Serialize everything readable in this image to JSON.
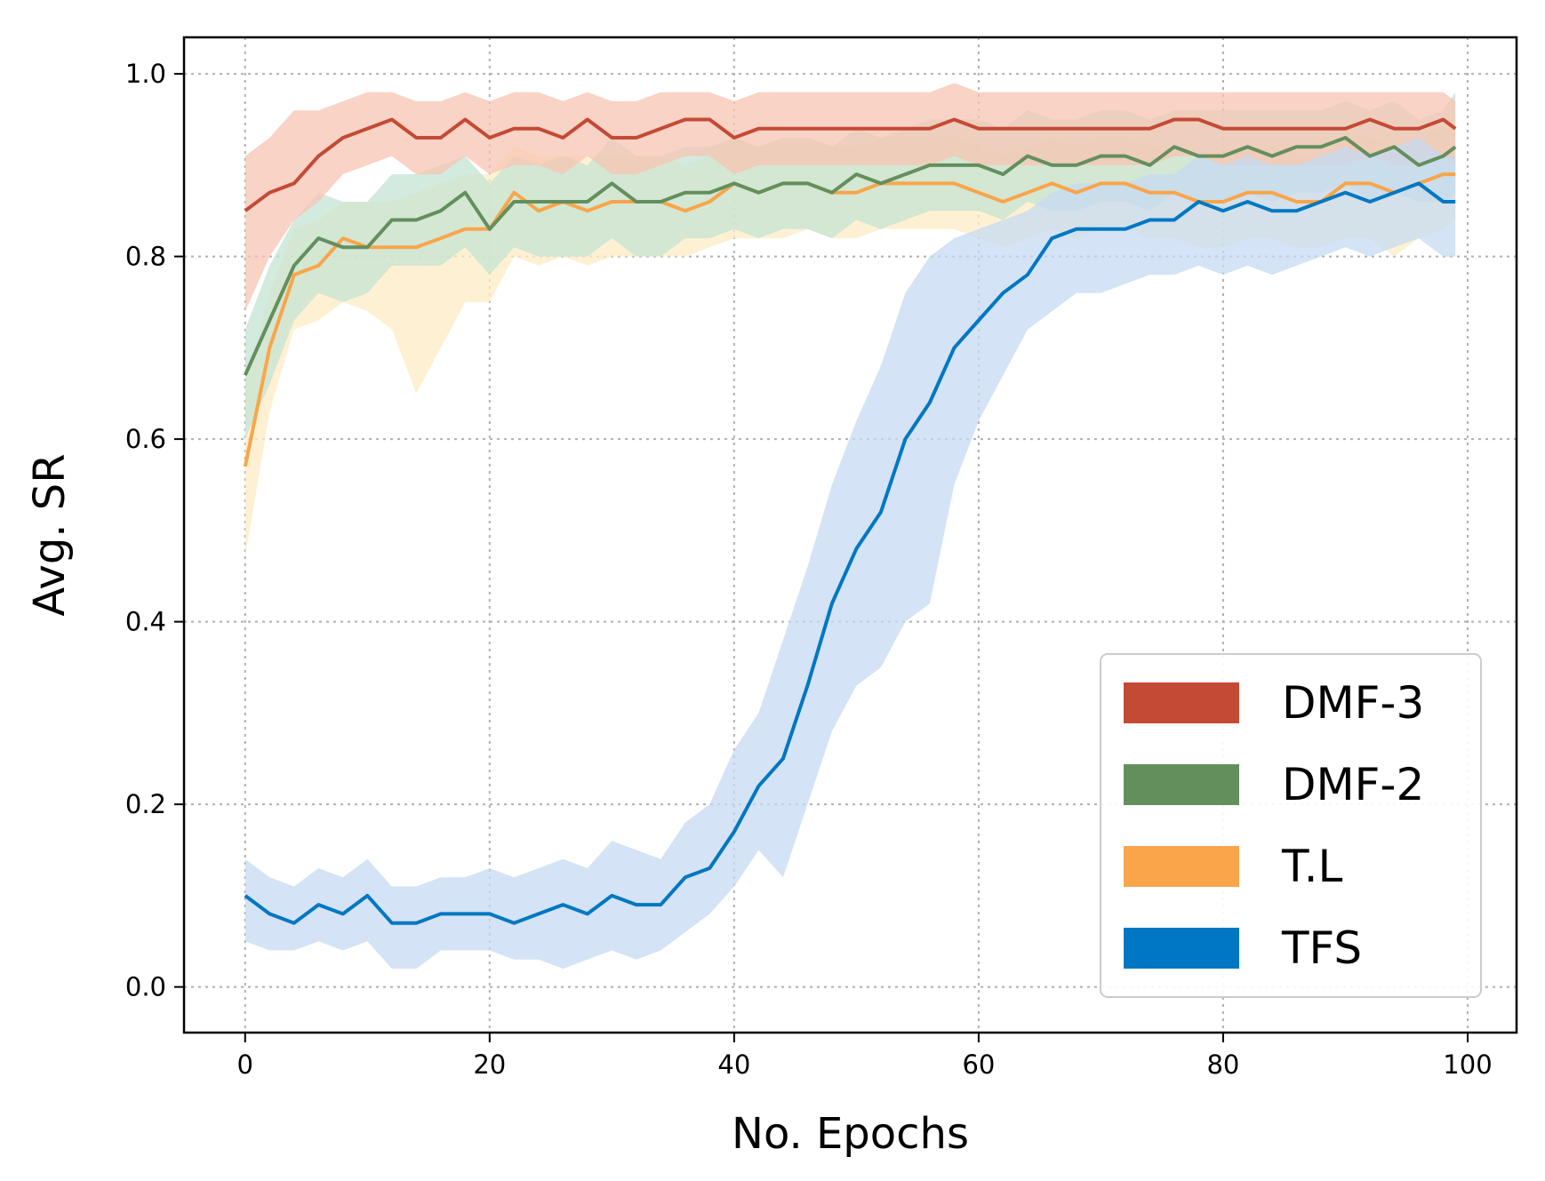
{
  "chart_data": {
    "type": "line",
    "title": "",
    "xlabel": "No. Epochs",
    "ylabel": "Avg. SR",
    "xlim": [
      -5,
      104
    ],
    "ylim": [
      -0.05,
      1.04
    ],
    "xticks": [
      0,
      20,
      40,
      60,
      80,
      100
    ],
    "yticks": [
      0.0,
      0.2,
      0.4,
      0.6,
      0.8,
      1.0
    ],
    "xtick_labels": [
      "0",
      "20",
      "40",
      "60",
      "80",
      "100"
    ],
    "ytick_labels": [
      "0.0",
      "0.2",
      "0.4",
      "0.6",
      "0.8",
      "1.0"
    ],
    "grid": true,
    "legend_position": "lower-right",
    "x": [
      0,
      2,
      4,
      6,
      8,
      10,
      12,
      14,
      16,
      18,
      20,
      22,
      24,
      26,
      28,
      30,
      32,
      34,
      36,
      38,
      40,
      42,
      44,
      46,
      48,
      50,
      52,
      54,
      56,
      58,
      60,
      62,
      64,
      66,
      68,
      70,
      72,
      74,
      76,
      78,
      80,
      82,
      84,
      86,
      88,
      90,
      92,
      94,
      96,
      98,
      99
    ],
    "series": [
      {
        "name": "DMF-3",
        "color": "#c44a36",
        "band_color": "#f7c4b2",
        "values": [
          0.85,
          0.87,
          0.88,
          0.91,
          0.93,
          0.94,
          0.95,
          0.93,
          0.93,
          0.95,
          0.93,
          0.94,
          0.94,
          0.93,
          0.95,
          0.93,
          0.93,
          0.94,
          0.95,
          0.95,
          0.93,
          0.94,
          0.94,
          0.94,
          0.94,
          0.94,
          0.94,
          0.94,
          0.94,
          0.95,
          0.94,
          0.94,
          0.94,
          0.94,
          0.94,
          0.94,
          0.94,
          0.94,
          0.95,
          0.95,
          0.94,
          0.94,
          0.94,
          0.94,
          0.94,
          0.94,
          0.95,
          0.94,
          0.94,
          0.95,
          0.94
        ],
        "lower": [
          0.74,
          0.8,
          0.84,
          0.86,
          0.89,
          0.9,
          0.91,
          0.89,
          0.89,
          0.91,
          0.89,
          0.9,
          0.9,
          0.89,
          0.91,
          0.89,
          0.89,
          0.9,
          0.91,
          0.91,
          0.89,
          0.9,
          0.9,
          0.9,
          0.9,
          0.9,
          0.9,
          0.9,
          0.9,
          0.91,
          0.9,
          0.9,
          0.9,
          0.9,
          0.9,
          0.9,
          0.9,
          0.9,
          0.91,
          0.91,
          0.9,
          0.9,
          0.9,
          0.9,
          0.9,
          0.9,
          0.91,
          0.9,
          0.9,
          0.91,
          0.9
        ],
        "upper": [
          0.91,
          0.93,
          0.96,
          0.96,
          0.97,
          0.98,
          0.98,
          0.97,
          0.97,
          0.98,
          0.97,
          0.98,
          0.98,
          0.97,
          0.98,
          0.97,
          0.97,
          0.98,
          0.98,
          0.98,
          0.97,
          0.98,
          0.98,
          0.98,
          0.98,
          0.98,
          0.98,
          0.98,
          0.98,
          0.99,
          0.98,
          0.98,
          0.98,
          0.98,
          0.98,
          0.98,
          0.98,
          0.98,
          0.98,
          0.98,
          0.98,
          0.98,
          0.98,
          0.98,
          0.98,
          0.98,
          0.98,
          0.98,
          0.98,
          0.98,
          0.97
        ]
      },
      {
        "name": "DMF-2",
        "color": "#638f5d",
        "band_color": "#c4e3d3",
        "values": [
          0.67,
          0.73,
          0.79,
          0.82,
          0.81,
          0.81,
          0.84,
          0.84,
          0.85,
          0.87,
          0.83,
          0.86,
          0.86,
          0.86,
          0.86,
          0.88,
          0.86,
          0.86,
          0.87,
          0.87,
          0.88,
          0.87,
          0.88,
          0.88,
          0.87,
          0.89,
          0.88,
          0.89,
          0.9,
          0.9,
          0.9,
          0.89,
          0.91,
          0.9,
          0.9,
          0.91,
          0.91,
          0.9,
          0.92,
          0.91,
          0.91,
          0.92,
          0.91,
          0.92,
          0.92,
          0.93,
          0.91,
          0.92,
          0.9,
          0.91,
          0.92
        ],
        "lower": [
          0.6,
          0.66,
          0.73,
          0.76,
          0.75,
          0.76,
          0.79,
          0.79,
          0.79,
          0.81,
          0.78,
          0.81,
          0.8,
          0.8,
          0.8,
          0.82,
          0.8,
          0.8,
          0.82,
          0.82,
          0.83,
          0.82,
          0.83,
          0.83,
          0.82,
          0.84,
          0.83,
          0.84,
          0.85,
          0.85,
          0.85,
          0.84,
          0.86,
          0.85,
          0.85,
          0.86,
          0.86,
          0.85,
          0.87,
          0.86,
          0.86,
          0.87,
          0.86,
          0.87,
          0.87,
          0.88,
          0.86,
          0.87,
          0.86,
          0.86,
          0.87
        ],
        "upper": [
          0.72,
          0.79,
          0.84,
          0.87,
          0.86,
          0.86,
          0.89,
          0.89,
          0.9,
          0.91,
          0.88,
          0.91,
          0.9,
          0.91,
          0.9,
          0.93,
          0.91,
          0.91,
          0.92,
          0.92,
          0.93,
          0.92,
          0.93,
          0.93,
          0.92,
          0.94,
          0.93,
          0.94,
          0.95,
          0.95,
          0.95,
          0.94,
          0.96,
          0.95,
          0.95,
          0.96,
          0.96,
          0.95,
          0.96,
          0.96,
          0.96,
          0.96,
          0.96,
          0.96,
          0.96,
          0.97,
          0.96,
          0.97,
          0.95,
          0.96,
          0.98
        ]
      },
      {
        "name": "T.L",
        "color": "#f9a54a",
        "band_color": "#fdecc4",
        "values": [
          0.57,
          0.7,
          0.78,
          0.79,
          0.82,
          0.81,
          0.81,
          0.81,
          0.82,
          0.83,
          0.83,
          0.87,
          0.85,
          0.86,
          0.85,
          0.86,
          0.86,
          0.86,
          0.85,
          0.86,
          0.88,
          0.87,
          0.88,
          0.88,
          0.87,
          0.87,
          0.88,
          0.88,
          0.88,
          0.88,
          0.87,
          0.86,
          0.87,
          0.88,
          0.87,
          0.88,
          0.88,
          0.87,
          0.87,
          0.86,
          0.86,
          0.87,
          0.87,
          0.86,
          0.86,
          0.88,
          0.88,
          0.87,
          0.88,
          0.89,
          0.89
        ],
        "lower": [
          0.47,
          0.63,
          0.72,
          0.73,
          0.75,
          0.74,
          0.72,
          0.65,
          0.7,
          0.75,
          0.75,
          0.8,
          0.79,
          0.8,
          0.79,
          0.8,
          0.8,
          0.8,
          0.8,
          0.81,
          0.82,
          0.82,
          0.82,
          0.83,
          0.82,
          0.82,
          0.83,
          0.83,
          0.83,
          0.83,
          0.82,
          0.81,
          0.82,
          0.83,
          0.82,
          0.83,
          0.83,
          0.82,
          0.82,
          0.81,
          0.81,
          0.82,
          0.82,
          0.81,
          0.81,
          0.82,
          0.82,
          0.8,
          0.82,
          0.83,
          0.84
        ],
        "upper": [
          0.66,
          0.76,
          0.83,
          0.84,
          0.86,
          0.86,
          0.86,
          0.87,
          0.88,
          0.89,
          0.89,
          0.92,
          0.91,
          0.91,
          0.91,
          0.91,
          0.91,
          0.91,
          0.9,
          0.91,
          0.93,
          0.92,
          0.93,
          0.93,
          0.92,
          0.92,
          0.93,
          0.93,
          0.93,
          0.93,
          0.92,
          0.91,
          0.92,
          0.93,
          0.92,
          0.93,
          0.93,
          0.92,
          0.92,
          0.91,
          0.91,
          0.92,
          0.92,
          0.91,
          0.91,
          0.93,
          0.93,
          0.92,
          0.93,
          0.94,
          0.94
        ]
      },
      {
        "name": "TFS",
        "color": "#0077c2",
        "band_color": "#c6daf2",
        "values": [
          0.1,
          0.08,
          0.07,
          0.09,
          0.08,
          0.1,
          0.07,
          0.07,
          0.08,
          0.08,
          0.08,
          0.07,
          0.08,
          0.09,
          0.08,
          0.1,
          0.09,
          0.09,
          0.12,
          0.13,
          0.17,
          0.22,
          0.25,
          0.33,
          0.42,
          0.48,
          0.52,
          0.6,
          0.64,
          0.7,
          0.73,
          0.76,
          0.78,
          0.82,
          0.83,
          0.83,
          0.83,
          0.84,
          0.84,
          0.86,
          0.85,
          0.86,
          0.85,
          0.85,
          0.86,
          0.87,
          0.86,
          0.87,
          0.88,
          0.86,
          0.86
        ],
        "lower": [
          0.05,
          0.04,
          0.04,
          0.05,
          0.04,
          0.05,
          0.02,
          0.02,
          0.04,
          0.04,
          0.04,
          0.03,
          0.03,
          0.02,
          0.03,
          0.04,
          0.03,
          0.04,
          0.06,
          0.08,
          0.11,
          0.15,
          0.12,
          0.2,
          0.28,
          0.33,
          0.35,
          0.4,
          0.42,
          0.55,
          0.62,
          0.67,
          0.72,
          0.74,
          0.76,
          0.76,
          0.77,
          0.78,
          0.78,
          0.79,
          0.78,
          0.79,
          0.78,
          0.79,
          0.8,
          0.81,
          0.8,
          0.81,
          0.82,
          0.8,
          0.8
        ],
        "upper": [
          0.14,
          0.12,
          0.11,
          0.13,
          0.12,
          0.14,
          0.11,
          0.11,
          0.12,
          0.12,
          0.13,
          0.12,
          0.13,
          0.14,
          0.13,
          0.16,
          0.15,
          0.14,
          0.18,
          0.2,
          0.26,
          0.3,
          0.38,
          0.46,
          0.55,
          0.62,
          0.68,
          0.76,
          0.8,
          0.82,
          0.83,
          0.84,
          0.85,
          0.87,
          0.88,
          0.88,
          0.88,
          0.89,
          0.89,
          0.91,
          0.9,
          0.91,
          0.9,
          0.9,
          0.91,
          0.92,
          0.91,
          0.92,
          0.93,
          0.91,
          0.91
        ]
      }
    ]
  }
}
